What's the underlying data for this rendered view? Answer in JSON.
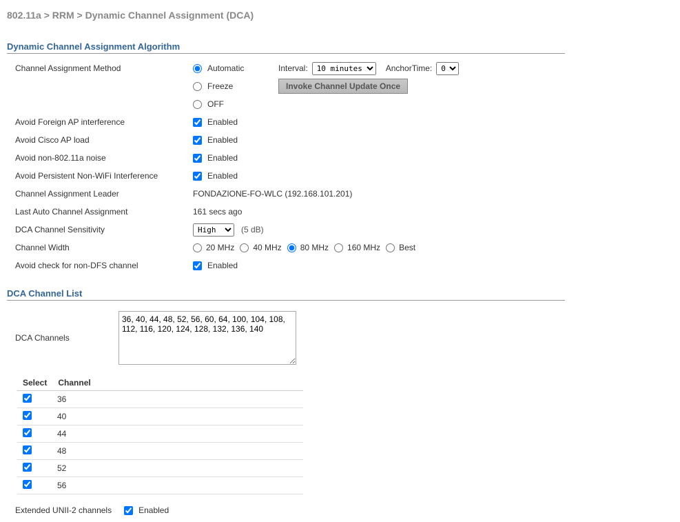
{
  "breadcrumb": "802.11a > RRM > Dynamic Channel Assignment (DCA)",
  "sections": {
    "algorithm": "Dynamic Channel Assignment Algorithm",
    "channel_list": "DCA Channel List"
  },
  "labels": {
    "method": "Channel Assignment Method",
    "method_auto": "Automatic",
    "method_freeze": "Freeze",
    "method_off": "OFF",
    "interval": "Interval:",
    "anchor": "AnchorTime:",
    "invoke": "Invoke Channel Update Once",
    "avoid_foreign": "Avoid Foreign AP interference",
    "avoid_cisco": "Avoid Cisco AP load",
    "avoid_non80211a": "Avoid non-802.11a noise",
    "avoid_persist": "Avoid Persistent Non-WiFi Interference",
    "leader": "Channel Assignment Leader",
    "last_auto": "Last Auto Channel Assignment",
    "sensitivity": "DCA Channel Sensitivity",
    "width": "Channel Width",
    "avoid_nondfs": "Avoid check for non-DFS channel",
    "enabled": "Enabled",
    "dca_channels": "DCA Channels",
    "select": "Select",
    "channel": "Channel",
    "ext_unii2": "Extended UNII-2 channels"
  },
  "values": {
    "interval": "10 minutes",
    "anchor": "0",
    "leader": "FONDAZIONE-FO-WLC (192.168.101.201)",
    "last_auto": "161 secs ago",
    "sensitivity": "High",
    "sensitivity_note": "(5 dB)",
    "width_20": "20 MHz",
    "width_40": "40 MHz",
    "width_80": "80 MHz",
    "width_160": "160 MHz",
    "width_best": "Best",
    "dca_channels_text": "36, 40, 44, 48, 52, 56, 60, 64, 100, 104, 108, 112, 116, 120, 124, 128, 132, 136, 140"
  },
  "checks": {
    "avoid_foreign": true,
    "avoid_cisco": true,
    "avoid_non80211a": true,
    "avoid_persist": true,
    "avoid_nondfs": true,
    "ext_unii2": true
  },
  "channel_table": [
    {
      "selected": true,
      "ch": "36"
    },
    {
      "selected": true,
      "ch": "40"
    },
    {
      "selected": true,
      "ch": "44"
    },
    {
      "selected": true,
      "ch": "48"
    },
    {
      "selected": true,
      "ch": "52"
    },
    {
      "selected": true,
      "ch": "56"
    }
  ]
}
